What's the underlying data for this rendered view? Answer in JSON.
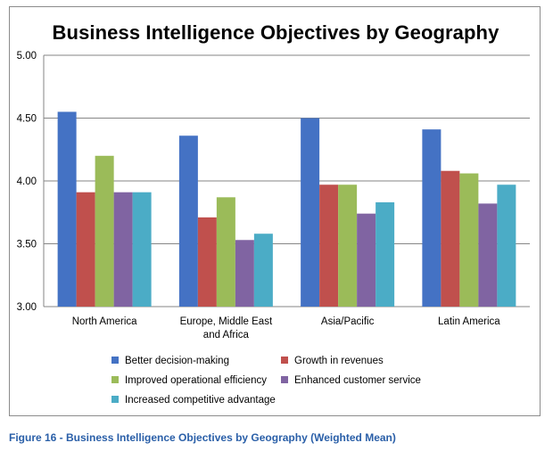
{
  "caption": "Figure 16 - Business Intelligence Objectives by Geography (Weighted Mean)",
  "chart_data": {
    "type": "bar",
    "title": "Business Intelligence Objectives by Geography",
    "categories": [
      "North America",
      "Europe, Middle East and Africa",
      "Asia/Pacific",
      "Latin America"
    ],
    "ylim": [
      3.0,
      5.0
    ],
    "yticks": [
      "3.00",
      "3.50",
      "4.00",
      "4.50",
      "5.00"
    ],
    "grid": true,
    "legend_position": "bottom",
    "series": [
      {
        "name": "Better decision-making",
        "color": "#4472c4",
        "values": [
          4.55,
          4.36,
          4.5,
          4.41
        ]
      },
      {
        "name": "Growth in revenues",
        "color": "#c0504d",
        "values": [
          3.91,
          3.71,
          3.97,
          4.08
        ]
      },
      {
        "name": "Improved operational efficiency",
        "color": "#9bbb59",
        "values": [
          4.2,
          3.87,
          3.97,
          4.06
        ]
      },
      {
        "name": "Enhanced customer service",
        "color": "#8064a2",
        "values": [
          3.91,
          3.53,
          3.74,
          3.82
        ]
      },
      {
        "name": "Increased competitive advantage",
        "color": "#4bacc6",
        "values": [
          3.91,
          3.58,
          3.83,
          3.97
        ]
      }
    ]
  }
}
